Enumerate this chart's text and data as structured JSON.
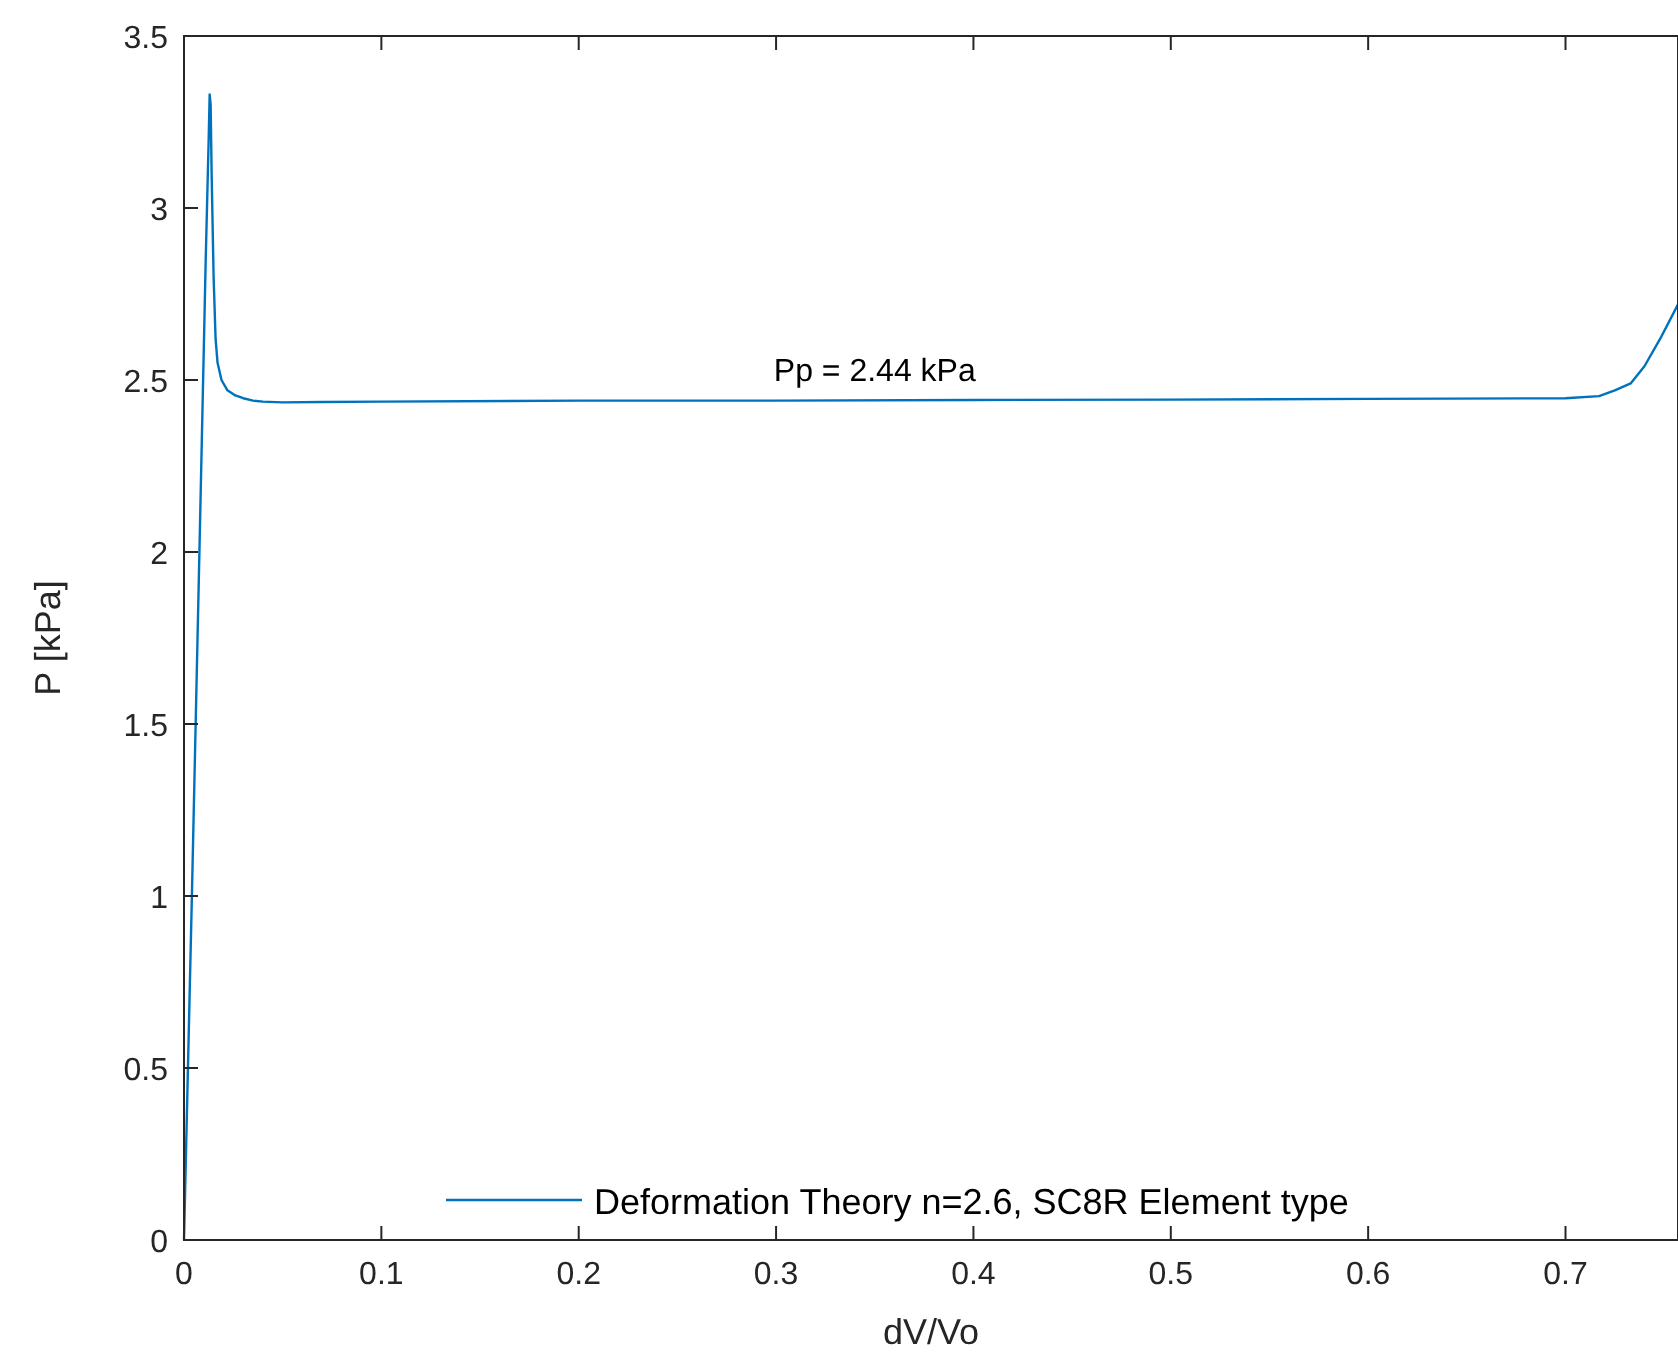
{
  "chart_data": {
    "type": "line",
    "xlabel": "dV/Vo",
    "ylabel": "P [kPa]",
    "xlim": [
      0,
      0.757
    ],
    "xticks": [
      0,
      0.1,
      0.2,
      0.3,
      0.4,
      0.5,
      0.6,
      0.7
    ],
    "ylim": [
      0,
      3.5
    ],
    "yticks": [
      0,
      0.5,
      1,
      1.5,
      2,
      2.5,
      3,
      3.5
    ],
    "grid": false,
    "legend": "bottom right",
    "annotations": [
      {
        "text": "Pp = 2.44 kPa",
        "x": 0.35,
        "y": 2.44
      }
    ],
    "series": [
      {
        "name": "Deformation Theory n=2.6, SC8R Element type",
        "color": "#0072bd",
        "x": [
          0,
          0.004,
          0.008,
          0.011,
          0.0125,
          0.013,
          0.0135,
          0.014,
          0.015,
          0.016,
          0.017,
          0.019,
          0.022,
          0.026,
          0.03,
          0.035,
          0.04,
          0.05,
          0.07,
          0.1,
          0.2,
          0.3,
          0.4,
          0.5,
          0.6,
          0.7,
          0.717,
          0.725,
          0.733,
          0.74,
          0.748,
          0.757
        ],
        "values": [
          0,
          1.0,
          2.05,
          2.85,
          3.2,
          3.33,
          3.3,
          3.1,
          2.8,
          2.62,
          2.55,
          2.5,
          2.47,
          2.455,
          2.447,
          2.44,
          2.437,
          2.435,
          2.436,
          2.437,
          2.44,
          2.44,
          2.442,
          2.443,
          2.445,
          2.447,
          2.453,
          2.47,
          2.49,
          2.54,
          2.62,
          2.72
        ]
      }
    ]
  }
}
